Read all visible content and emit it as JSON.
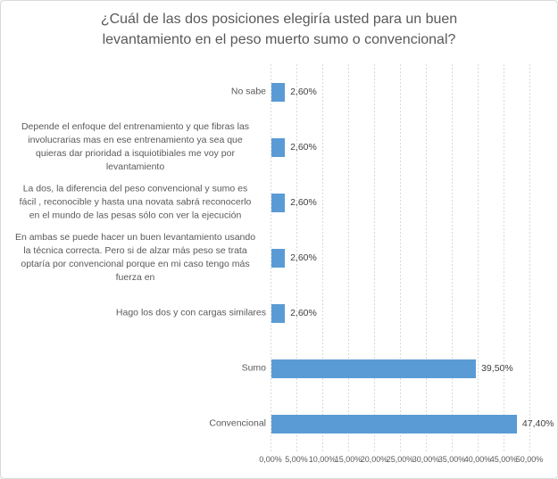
{
  "chart_data": {
    "type": "bar",
    "orientation": "horizontal",
    "title": "¿Cuál de las dos posiciones elegiría usted para un buen\nlevantamiento en el peso muerto sumo o convencional?",
    "categories": [
      [
        "No sabe"
      ],
      [
        "Depende el enfoque del entrenamiento y que fibras las",
        "involucrarias mas en ese entrenamiento ya sea que",
        "quieras dar prioridad a isquiotibiales me voy por",
        "levantamiento"
      ],
      [
        "La dos, la diferencia del peso convencional y sumo es",
        "fácil , reconocible y hasta una novata sabrá reconocerlo",
        "en el mundo de las pesas sólo con ver la ejecución"
      ],
      [
        "En ambas se puede hacer un buen levantamiento usando",
        "la técnica correcta. Pero si de alzar más peso se trata",
        "optaría por convencional porque en mi caso tengo más",
        "fuerza en"
      ],
      [
        "Hago los dos y con cargas similares"
      ],
      [
        "Sumo"
      ],
      [
        "Convencional"
      ]
    ],
    "values": [
      2.6,
      2.6,
      2.6,
      2.6,
      2.6,
      39.5,
      47.4
    ],
    "value_labels": [
      "2,60%",
      "2,60%",
      "2,60%",
      "2,60%",
      "2,60%",
      "39,50%",
      "47,40%"
    ],
    "x_tick_labels": [
      "0,00%",
      "5,00%",
      "10,00%",
      "15,00%",
      "20,00%",
      "25,00%",
      "30,00%",
      "35,00%",
      "40,00%",
      "45,00%",
      "50,00%"
    ],
    "xlim": [
      0,
      50
    ],
    "grid": "vertical-dotted",
    "legend": "none",
    "colors": {
      "bar": "#5B9BD5",
      "gridline": "#D9D9D9",
      "title_text": "#595959",
      "axis_text": "#595959",
      "value_label_text": "#404040",
      "chart_border": "#D9D9D9",
      "background": "#FFFFFF"
    }
  }
}
